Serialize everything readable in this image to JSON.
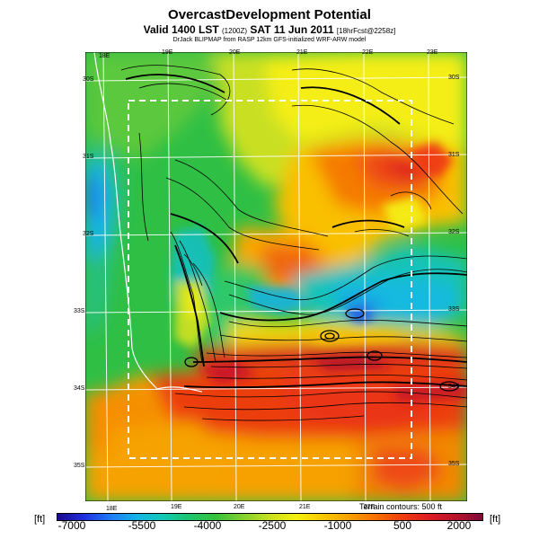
{
  "header": {
    "title": "OvercastDevelopment Potential",
    "valid_main": "Valid 1400 LST",
    "valid_time": "(1200Z)",
    "valid_date": "SAT 11 Jun 2011",
    "valid_fcst": "[18hrFcst@2258z]",
    "credit": "DrJack BLIPMAP from RASP 12km GFS-initialized WRF-ARW model"
  },
  "map": {
    "top_lon_labels": [
      "18E",
      "19E",
      "20E",
      "21E",
      "22E",
      "23E"
    ],
    "bottom_lon_labels": [
      "18E",
      "19E",
      "20E",
      "21E",
      "22E"
    ],
    "left_lat_labels": [
      "30S",
      "31S",
      "32S",
      "33S",
      "34S",
      "35S"
    ],
    "right_lat_labels": [
      "30S",
      "31S",
      "32S",
      "33S",
      "34S",
      "35S"
    ],
    "terrain_note": "Terrain contours: 500 ft"
  },
  "legend": {
    "unit_left": "[ft]",
    "unit_right": "[ft]",
    "ticks": [
      "-7000",
      "-5500",
      "-4000",
      "-2500",
      "-1000",
      "500",
      "2000"
    ],
    "min": -7000,
    "max": 2000,
    "colors": [
      "#1a0a8c",
      "#1f2fe0",
      "#1e7bf5",
      "#14b4e6",
      "#12c9b4",
      "#1cc46a",
      "#38c23a",
      "#84d12c",
      "#c8e021",
      "#f5f00f",
      "#f8c800",
      "#f7a000",
      "#f56f00",
      "#ee3d10",
      "#dc1c24",
      "#b8142c",
      "#7c0a3a"
    ]
  }
}
